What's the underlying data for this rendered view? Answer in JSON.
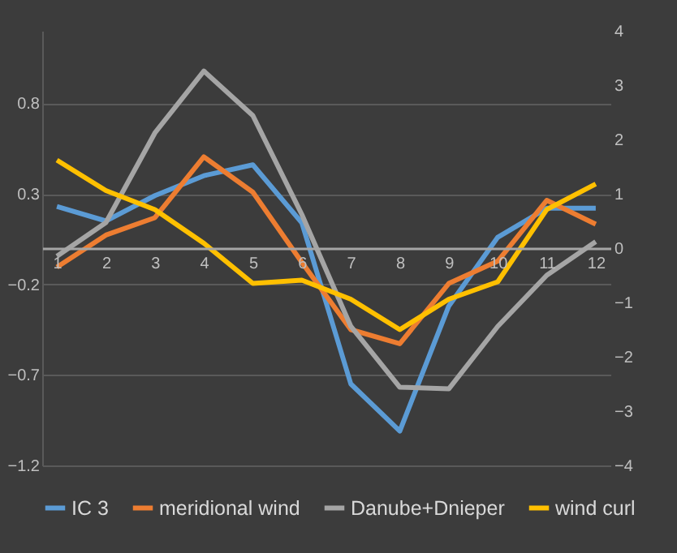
{
  "chart_data": {
    "type": "line",
    "categories": [
      "1",
      "2",
      "3",
      "4",
      "5",
      "6",
      "7",
      "8",
      "9",
      "10",
      "11",
      "12"
    ],
    "series": [
      {
        "name": "IC 3",
        "color": "#5b9bd5",
        "values": [
          0.23,
          0.15,
          0.29,
          0.4,
          0.46,
          0.14,
          -0.75,
          -1.01,
          -0.32,
          0.06,
          0.22,
          0.22
        ]
      },
      {
        "name": "meridional wind",
        "color": "#ed7d31",
        "axis": "y2",
        "values": [
          -0.35,
          0.24,
          0.56,
          1.68,
          1.03,
          -0.26,
          -1.5,
          -1.76,
          -0.65,
          -0.24,
          0.88,
          0.44
        ]
      },
      {
        "name": "Danube+Dnieper",
        "color": "#a5a5a5",
        "axis": "y2",
        "values": [
          -0.15,
          0.47,
          2.12,
          3.26,
          2.44,
          0.62,
          -1.44,
          -2.56,
          -2.59,
          -1.44,
          -0.5,
          0.12
        ]
      },
      {
        "name": "wind curl",
        "color": "#ffc000",
        "axis": "y2",
        "values": [
          1.62,
          1.06,
          0.71,
          0.09,
          -0.65,
          -0.59,
          -0.94,
          -1.5,
          -0.94,
          -0.62,
          0.71,
          1.18
        ]
      }
    ],
    "ylim": [
      -1.2,
      1.2
    ],
    "yticks": [
      -1.2,
      -0.7,
      -0.2,
      0.3,
      0.8
    ],
    "y2lim": [
      -4,
      4
    ],
    "y2ticks": [
      -4,
      -3,
      -2,
      -1,
      0,
      1,
      2,
      3,
      4
    ],
    "grid": "y",
    "legend": "bottom",
    "marker": "none",
    "line_style": "solid"
  }
}
